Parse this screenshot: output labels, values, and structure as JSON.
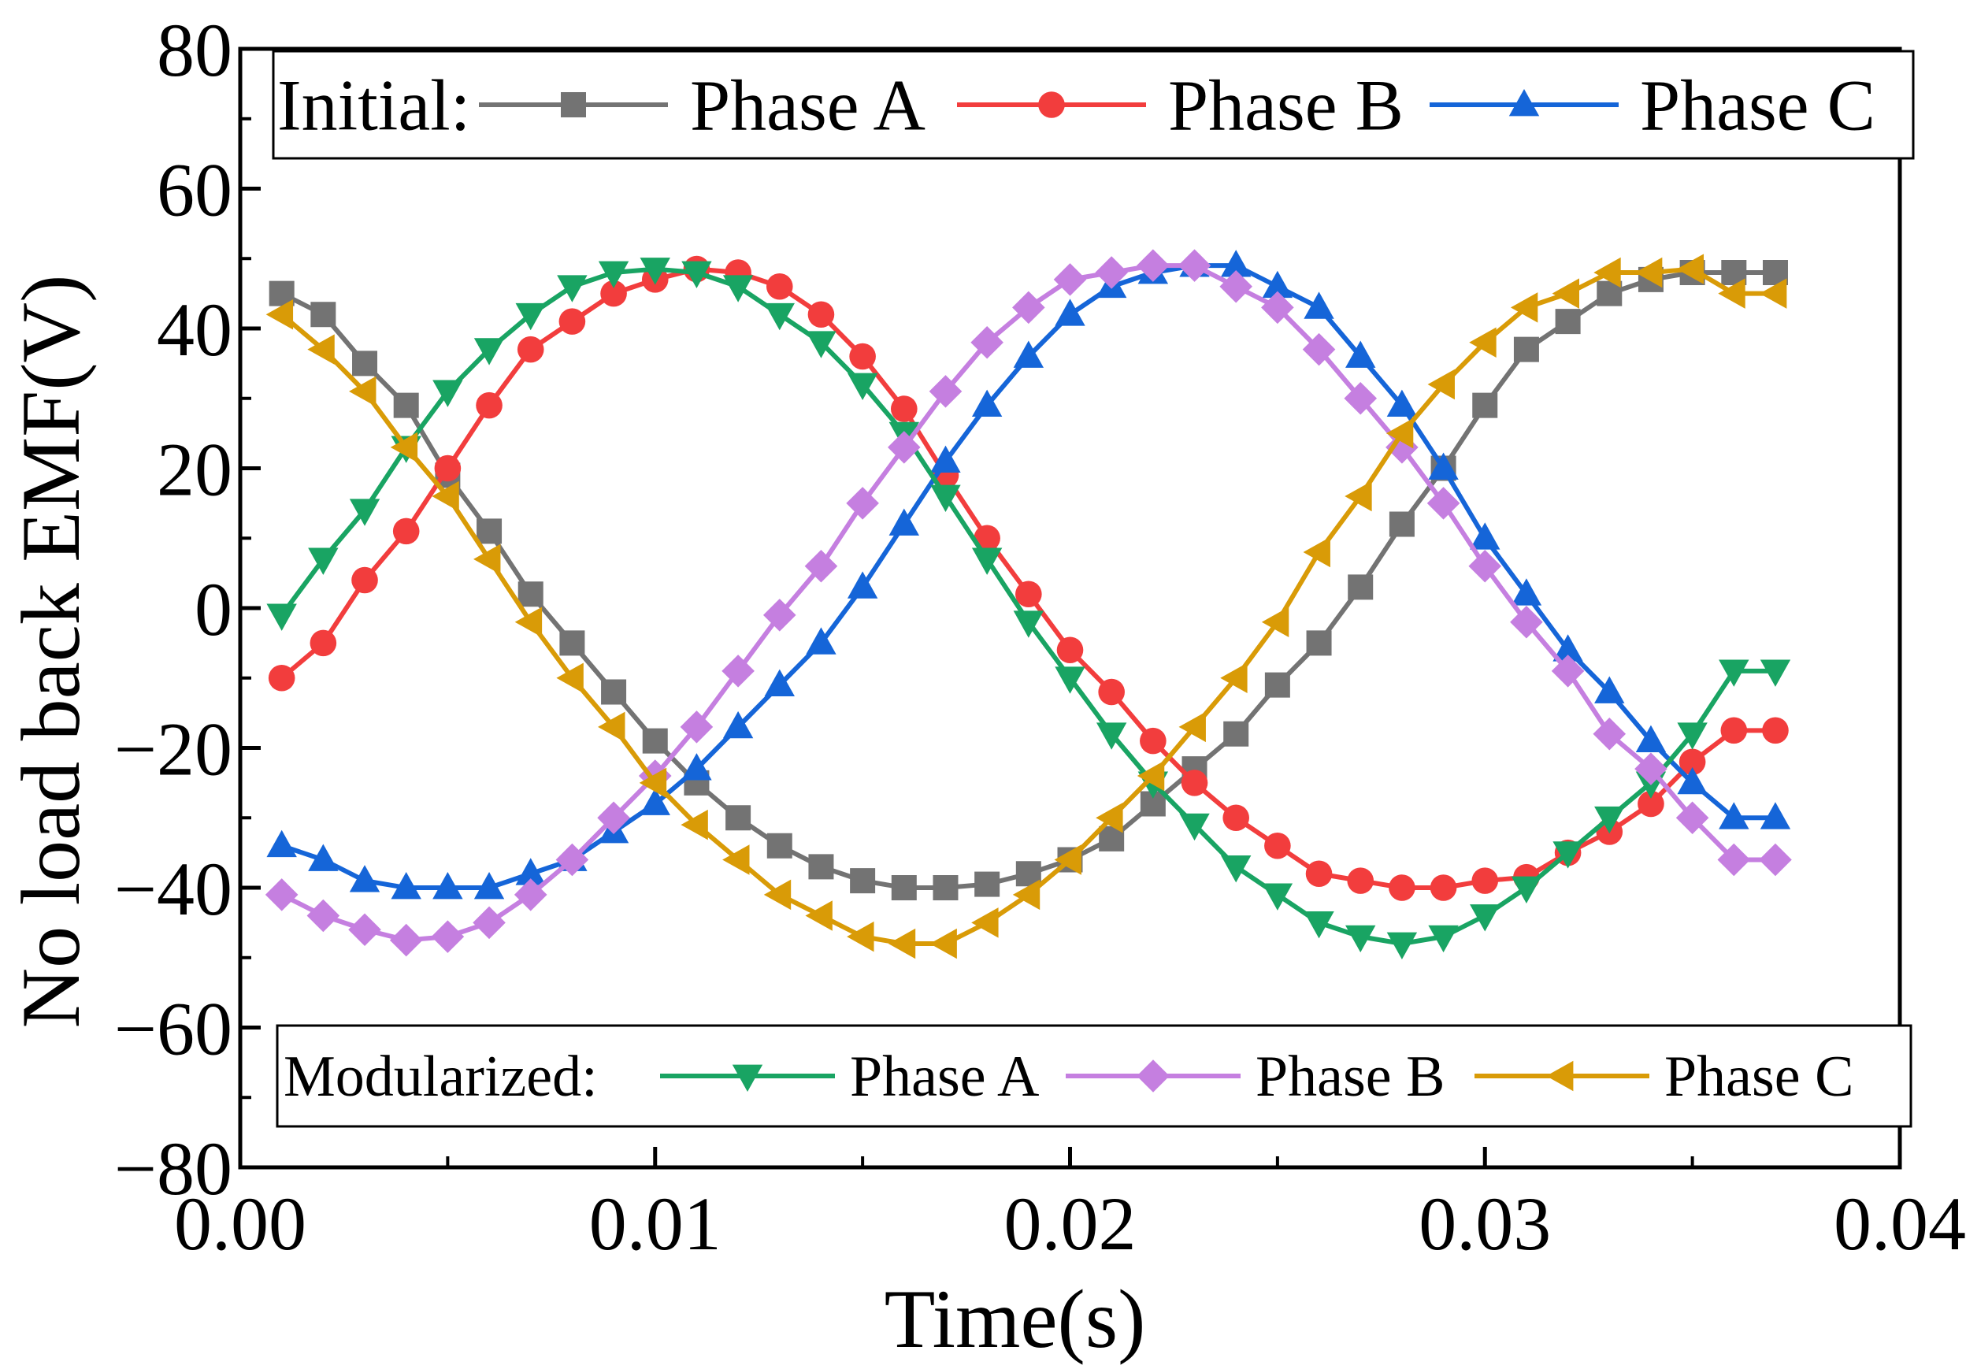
{
  "chart_data": {
    "type": "line",
    "xlabel": "Time(s)",
    "ylabel": "No load back EMF(V)",
    "xlim": [
      0.0,
      0.04
    ],
    "ylim": [
      -80,
      80
    ],
    "xticks": [
      0.0,
      0.01,
      0.02,
      0.03,
      0.04
    ],
    "xtick_labels": [
      "0.00",
      "0.01",
      "0.02",
      "0.03",
      "0.04"
    ],
    "yticks": [
      80,
      60,
      40,
      20,
      0,
      -20,
      -40,
      -60,
      -80
    ],
    "ytick_labels": [
      "80",
      "60",
      "40",
      "20",
      "0",
      "−20",
      "−40",
      "−60",
      "−80"
    ],
    "grid": false,
    "x": [
      0.001,
      0.002,
      0.003,
      0.004,
      0.005,
      0.006,
      0.007,
      0.008,
      0.009,
      0.01,
      0.011,
      0.012,
      0.013,
      0.014,
      0.015,
      0.016,
      0.017,
      0.018,
      0.019,
      0.02,
      0.021,
      0.022,
      0.023,
      0.024,
      0.025,
      0.026,
      0.027,
      0.028,
      0.029,
      0.03,
      0.031,
      0.032,
      0.033,
      0.034,
      0.035,
      0.036,
      0.037
    ],
    "legends": [
      {
        "title": "Initial:",
        "placement": "top",
        "entries": [
          "Phase A",
          "Phase B",
          "Phase C"
        ]
      },
      {
        "title": "Modularized:",
        "placement": "bottom",
        "entries": [
          "Phase A",
          "Phase B",
          "Phase C"
        ]
      }
    ],
    "series": [
      {
        "name": "Phase A",
        "group": "Initial",
        "color": "#737373",
        "marker": "square",
        "values": [
          45,
          42,
          35,
          29,
          19,
          11,
          2,
          -5,
          -12,
          -19,
          -25,
          -30,
          -34,
          -37,
          -39,
          -40,
          -40,
          -39.5,
          -38,
          -36,
          -33,
          -28,
          -23,
          -18,
          -11,
          -5,
          3,
          12,
          20,
          29,
          37,
          41,
          45,
          47,
          48,
          48,
          48
        ]
      },
      {
        "name": "Phase B",
        "group": "Initial",
        "color": "#f23d3d",
        "marker": "circle",
        "values": [
          -10,
          -5,
          4,
          11,
          20,
          29,
          37,
          41,
          45,
          47,
          48.5,
          48,
          46,
          42,
          36,
          28.5,
          19,
          10,
          2,
          -6,
          -12,
          -19,
          -25,
          -30,
          -34,
          -38,
          -39,
          -40,
          -40,
          -39,
          -38.5,
          -35,
          -32,
          -28,
          -22,
          -17.5,
          -17.5
        ]
      },
      {
        "name": "Phase C",
        "group": "Initial",
        "color": "#1565d8",
        "marker": "triangle-up",
        "values": [
          -34,
          -36,
          -39,
          -40,
          -40,
          -40,
          -38,
          -36,
          -32,
          -28,
          -23,
          -17,
          -11,
          -5,
          3,
          12,
          21,
          29,
          36,
          42,
          46,
          48,
          49,
          49,
          46,
          43,
          36,
          29,
          20,
          10,
          2,
          -6,
          -12,
          -19,
          -25,
          -30,
          -30
        ]
      },
      {
        "name": "Phase A",
        "group": "Modularized",
        "color": "#19a463",
        "marker": "triangle-down",
        "values": [
          -1,
          7,
          14,
          23,
          31,
          37,
          42,
          46,
          48,
          48.5,
          48,
          46,
          42,
          38,
          32,
          25,
          16,
          7,
          -2,
          -10,
          -18,
          -25,
          -31,
          -37,
          -41,
          -45,
          -47,
          -48,
          -47,
          -44,
          -40,
          -35,
          -30,
          -25,
          -18,
          -9,
          -9
        ]
      },
      {
        "name": "Phase B",
        "group": "Modularized",
        "color": "#c57fe0",
        "marker": "diamond",
        "values": [
          -41,
          -44,
          -46,
          -47.5,
          -47,
          -45,
          -41,
          -36,
          -30,
          -24,
          -17,
          -9,
          -1,
          6,
          15,
          23,
          31,
          38,
          43,
          47,
          48,
          49,
          49,
          46,
          43,
          37,
          30,
          23,
          15,
          6,
          -2,
          -9,
          -18,
          -23,
          -30,
          -36,
          -36
        ]
      },
      {
        "name": "Phase C",
        "group": "Modularized",
        "color": "#d99b07",
        "marker": "triangle-left",
        "values": [
          42,
          37,
          31,
          23,
          16,
          7,
          -2,
          -10,
          -17,
          -25,
          -31,
          -36,
          -41,
          -44,
          -47,
          -48,
          -48,
          -45,
          -41,
          -36,
          -30,
          -24,
          -17,
          -10,
          -2,
          8,
          16,
          25,
          32,
          38,
          43,
          45,
          48,
          48,
          48.5,
          45,
          45
        ]
      }
    ]
  }
}
